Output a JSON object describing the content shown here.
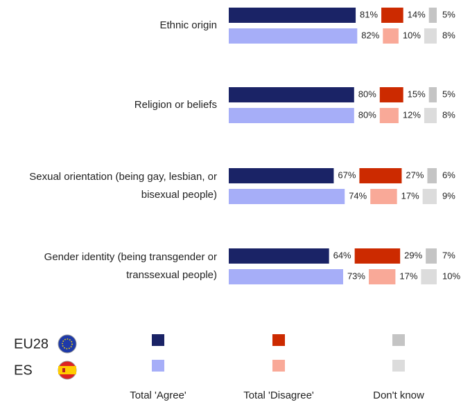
{
  "chart_data": {
    "type": "bar",
    "categories": [
      "Ethnic origin",
      "Religion or beliefs",
      "Sexual orientation (being gay, lesbian, or bisexual people)",
      "Gender identity (being transgender or transsexual people)"
    ],
    "category_lines": [
      [
        "Ethnic origin"
      ],
      [
        "Religion or beliefs"
      ],
      [
        "Sexual orientation (being gay, lesbian, or",
        "bisexual people)"
      ],
      [
        "Gender identity (being transgender or",
        "transsexual people)"
      ]
    ],
    "groups": [
      "EU28",
      "ES"
    ],
    "series": [
      {
        "name": "Total 'Agree'",
        "colors": [
          "#1a2366",
          "#a6aef8"
        ],
        "values": [
          [
            81,
            82
          ],
          [
            80,
            80
          ],
          [
            67,
            74
          ],
          [
            64,
            73
          ]
        ],
        "value_labels": [
          [
            "81%",
            "82%"
          ],
          [
            "80%",
            "80%"
          ],
          [
            "67%",
            "74%"
          ],
          [
            "64%",
            "73%"
          ]
        ]
      },
      {
        "name": "Total 'Disagree'",
        "colors": [
          "#cc2a00",
          "#f9a998"
        ],
        "values": [
          [
            14,
            10
          ],
          [
            15,
            12
          ],
          [
            27,
            17
          ],
          [
            29,
            17
          ]
        ],
        "value_labels": [
          [
            "14%",
            "10%"
          ],
          [
            "15%",
            "12%"
          ],
          [
            "27%",
            "17%"
          ],
          [
            "29%",
            "17%"
          ]
        ]
      },
      {
        "name": "Don't know",
        "colors": [
          "#c4c4c4",
          "#dcdcdc"
        ],
        "values": [
          [
            5,
            8
          ],
          [
            5,
            8
          ],
          [
            6,
            9
          ],
          [
            7,
            10
          ]
        ],
        "value_labels": [
          [
            "5%",
            "8%"
          ],
          [
            "5%",
            "8%"
          ],
          [
            "6%",
            "9%"
          ],
          [
            "7%",
            "10%"
          ]
        ]
      }
    ]
  }
}
